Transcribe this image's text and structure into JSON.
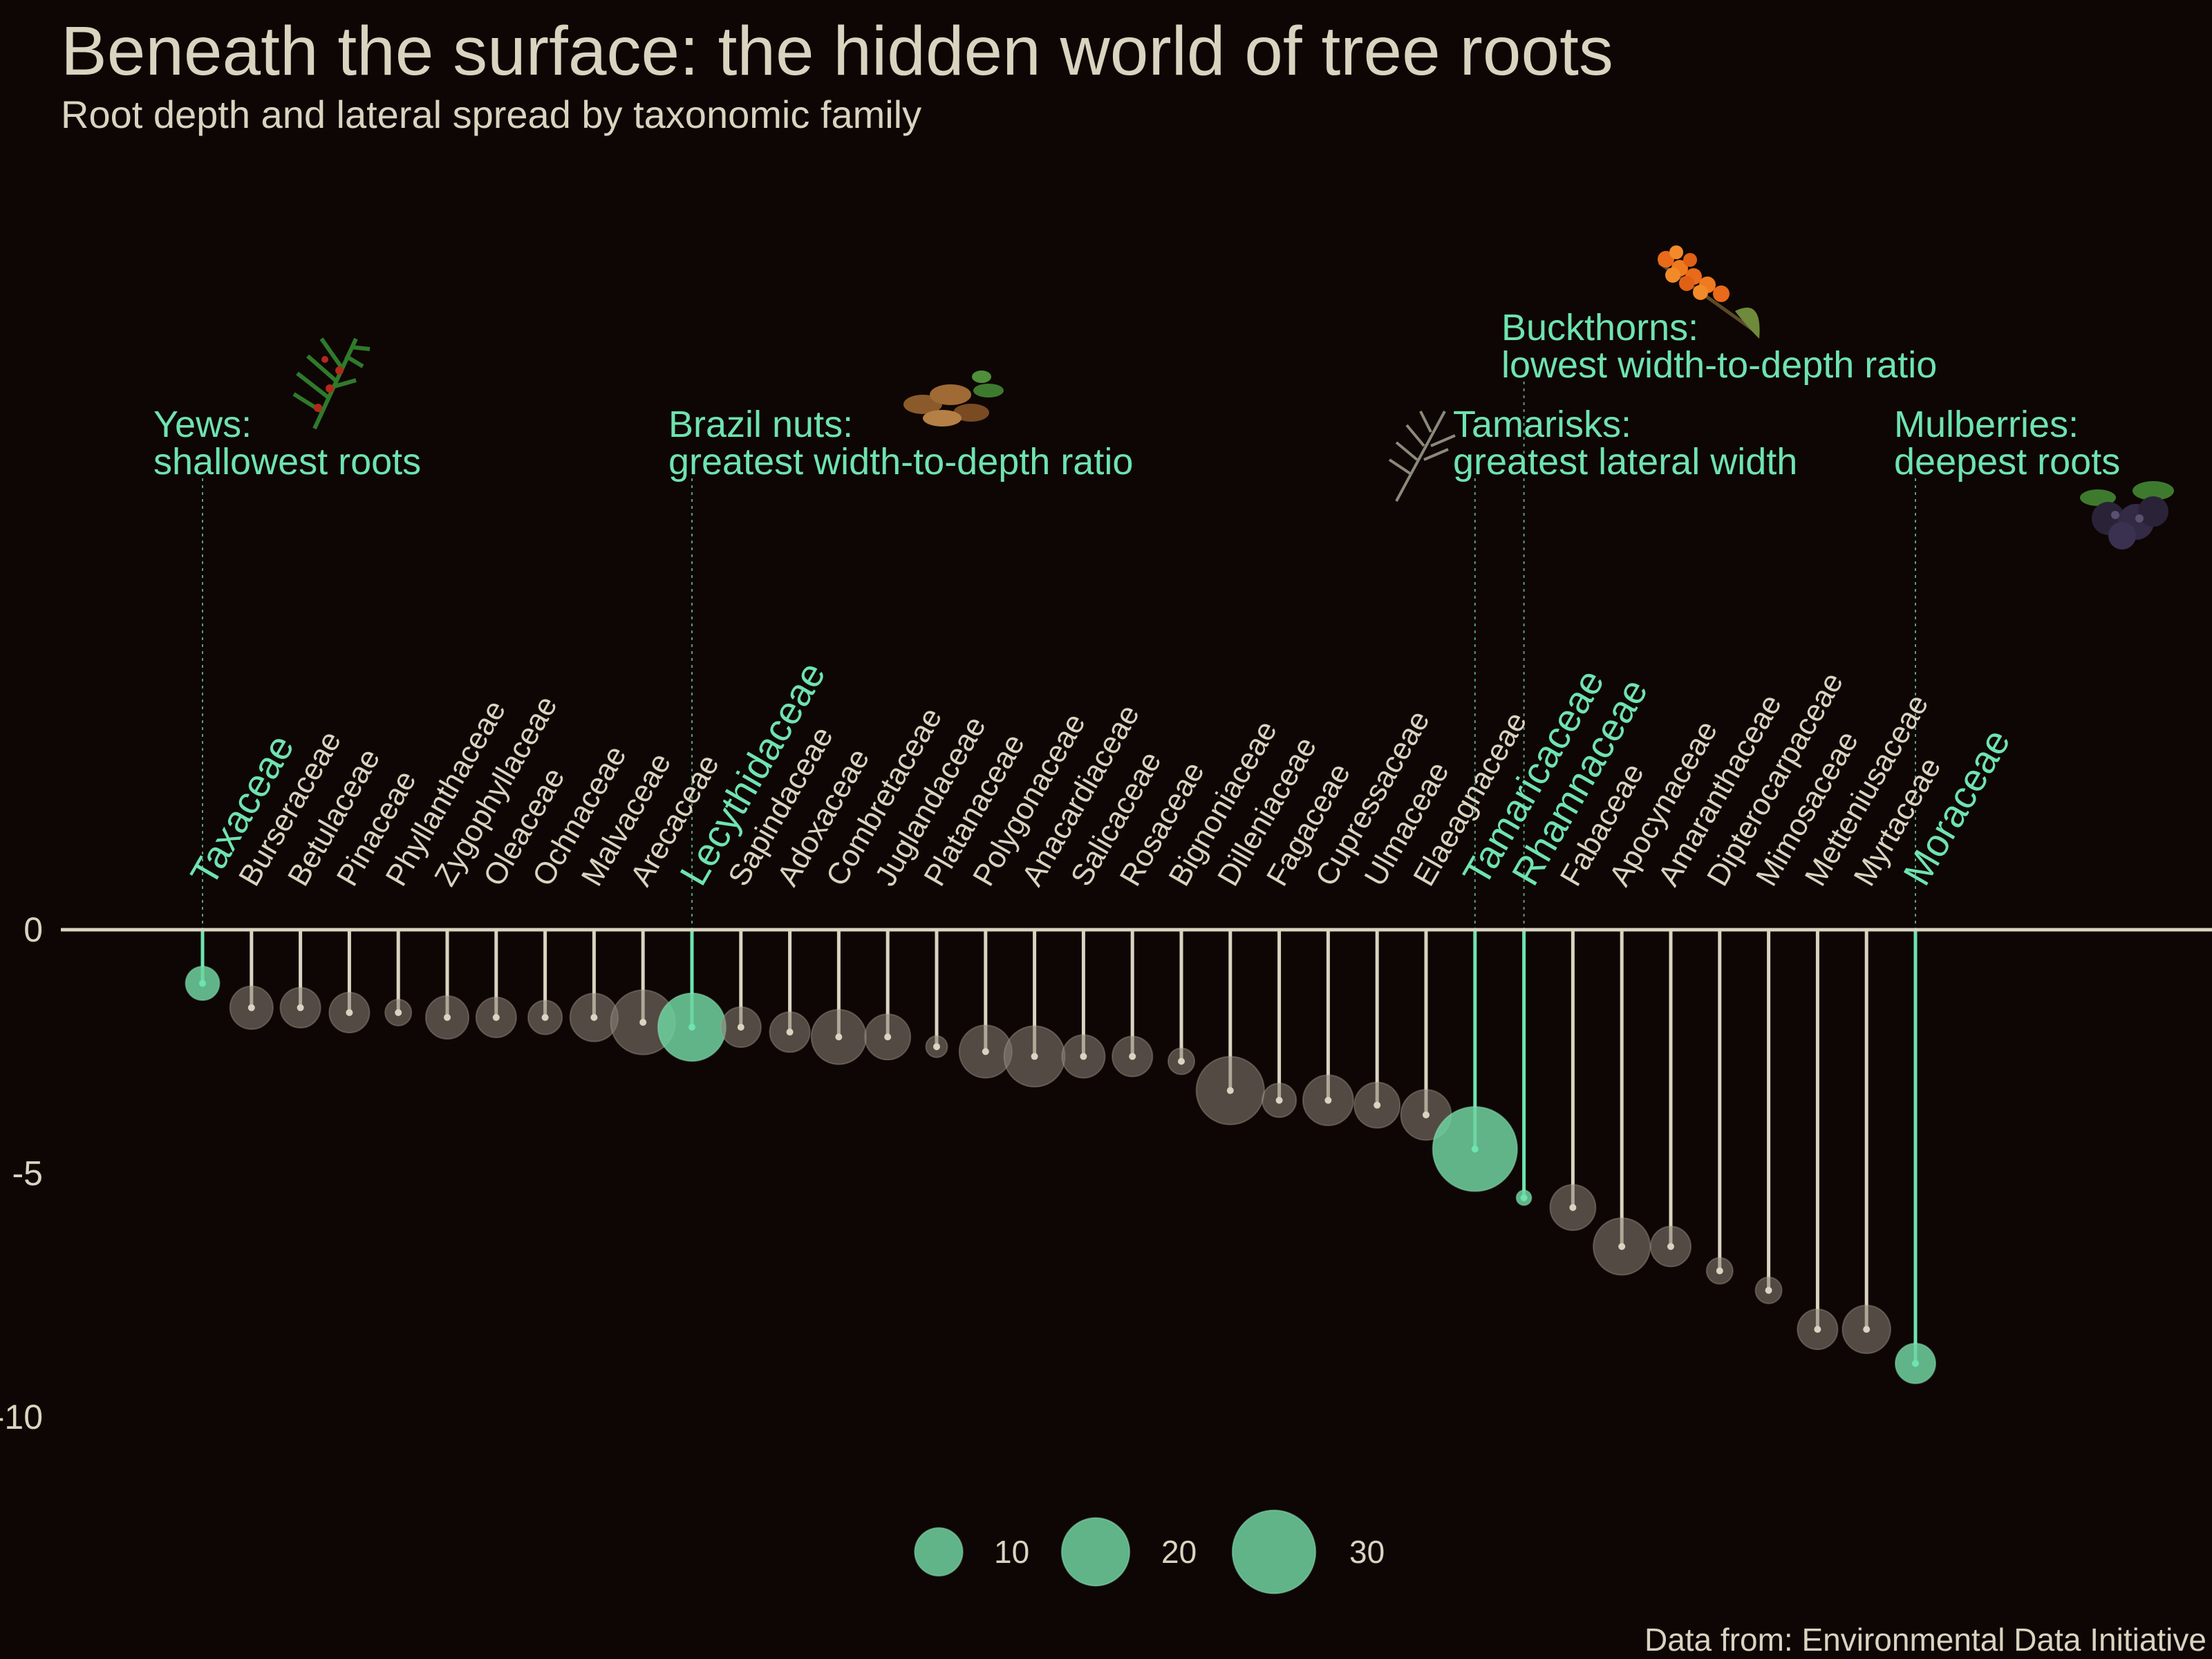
{
  "title": "Beneath the surface: the hidden world of tree roots",
  "subtitle": "Root depth and lateral spread by taxonomic family",
  "caption": "Data from: Environmental Data Initiative",
  "colors": {
    "background": "#0e0604",
    "text": "#d9d4c0",
    "highlight": "#6fe3b0",
    "bubble_grey": "#8a8478",
    "bubble_highlight": "#6fd3a0"
  },
  "chart_data": {
    "type": "lollipop-bubble",
    "y_axis": {
      "ticks": [
        0,
        -5,
        -10
      ],
      "ylim": [
        -12.5,
        0
      ]
    },
    "size_legend": [
      10,
      20,
      30
    ],
    "families": [
      {
        "name": "Taxaceae",
        "depth": -1.1,
        "width": 5,
        "highlight": true
      },
      {
        "name": "Burseraceae",
        "depth": -1.6,
        "width": 8
      },
      {
        "name": "Betulaceae",
        "depth": -1.6,
        "width": 7
      },
      {
        "name": "Pinaceae",
        "depth": -1.7,
        "width": 7
      },
      {
        "name": "Phyllanthaceae",
        "depth": -1.7,
        "width": 3
      },
      {
        "name": "Zygophyllaceae",
        "depth": -1.8,
        "width": 8
      },
      {
        "name": "Oleaceae",
        "depth": -1.8,
        "width": 7
      },
      {
        "name": "Ochnaceae",
        "depth": -1.8,
        "width": 5
      },
      {
        "name": "Malvaceae",
        "depth": -1.8,
        "width": 10
      },
      {
        "name": "Arecaceae",
        "depth": -1.9,
        "width": 18
      },
      {
        "name": "Lecythidaceae",
        "depth": -2.0,
        "width": 20,
        "highlight": true
      },
      {
        "name": "Sapindaceae",
        "depth": -2.0,
        "width": 7
      },
      {
        "name": "Adoxaceae",
        "depth": -2.1,
        "width": 7
      },
      {
        "name": "Combretaceae",
        "depth": -2.2,
        "width": 13
      },
      {
        "name": "Juglandaceae",
        "depth": -2.2,
        "width": 9
      },
      {
        "name": "Platanaceae",
        "depth": -2.4,
        "width": 2
      },
      {
        "name": "Polygonaceae",
        "depth": -2.5,
        "width": 12
      },
      {
        "name": "Anacardiaceae",
        "depth": -2.6,
        "width": 16
      },
      {
        "name": "Salicaceae",
        "depth": -2.6,
        "width": 8
      },
      {
        "name": "Rosaceae",
        "depth": -2.6,
        "width": 7
      },
      {
        "name": "Bignoniaceae",
        "depth": -2.7,
        "width": 3
      },
      {
        "name": "Dilleniaceae",
        "depth": -3.3,
        "width": 20
      },
      {
        "name": "Fagaceae",
        "depth": -3.5,
        "width": 5
      },
      {
        "name": "Cupressaceae",
        "depth": -3.5,
        "width": 11
      },
      {
        "name": "Ulmaceae",
        "depth": -3.6,
        "width": 9
      },
      {
        "name": "Elaeagnaceae",
        "depth": -3.8,
        "width": 11
      },
      {
        "name": "Tamaricaceae",
        "depth": -4.5,
        "width": 31,
        "highlight": true
      },
      {
        "name": "Rhamnaceae",
        "depth": -5.5,
        "width": 1,
        "highlight": true
      },
      {
        "name": "Fabaceae",
        "depth": -5.7,
        "width": 9
      },
      {
        "name": "Apocynaceae",
        "depth": -6.5,
        "width": 14
      },
      {
        "name": "Amaranthaceae",
        "depth": -6.5,
        "width": 7
      },
      {
        "name": "Dipterocarpaceae",
        "depth": -7.0,
        "width": 3
      },
      {
        "name": "Mimosaceae",
        "depth": -7.4,
        "width": 3
      },
      {
        "name": "Metteniusaceae",
        "depth": -8.2,
        "width": 7
      },
      {
        "name": "Myrtaceae",
        "depth": -8.2,
        "width": 10
      },
      {
        "name": "Moraceae",
        "depth": -8.9,
        "width": 7,
        "highlight": true
      }
    ],
    "annotations": [
      {
        "family": "Taxaceae",
        "line1": "Yews:",
        "line2": "shallowest roots",
        "icon": "yew-branch-icon"
      },
      {
        "family": "Lecythidaceae",
        "line1": "Brazil nuts:",
        "line2": "greatest width-to-depth ratio",
        "icon": "brazil-nuts-icon"
      },
      {
        "family": "Tamaricaceae",
        "line1": "Tamarisks:",
        "line2": "greatest lateral width",
        "icon": "tamarisk-sprig-icon"
      },
      {
        "family": "Rhamnaceae",
        "line1": "Buckthorns:",
        "line2": "lowest width-to-depth ratio",
        "icon": "sea-buckthorn-icon"
      },
      {
        "family": "Moraceae",
        "line1": "Mulberries:",
        "line2": "deepest roots",
        "icon": "mulberry-icon"
      }
    ]
  }
}
